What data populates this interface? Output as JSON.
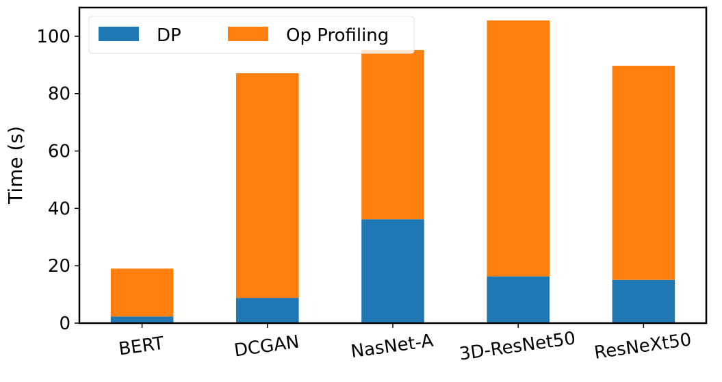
{
  "chart_data": {
    "type": "bar",
    "stacked": true,
    "categories": [
      "BERT",
      "DCGAN",
      "NasNet-A",
      "3D-ResNet50",
      "ResNeXt50"
    ],
    "series": [
      {
        "name": "DP",
        "values": [
          2.3,
          8.8,
          36.2,
          16.3,
          15.1
        ],
        "color": "#1f77b4"
      },
      {
        "name": "Op Profiling",
        "values": [
          16.7,
          78.3,
          59.0,
          89.2,
          74.6
        ],
        "color": "#ff7f0e"
      }
    ],
    "xlabel": "",
    "ylabel": "Time (s)",
    "ylim": [
      0,
      110
    ],
    "yticks": [
      0,
      20,
      40,
      60,
      80,
      100
    ],
    "grid": false,
    "legend": {
      "placement": "top-left",
      "columns": 2
    },
    "xtick_rotation_deg": -8
  }
}
